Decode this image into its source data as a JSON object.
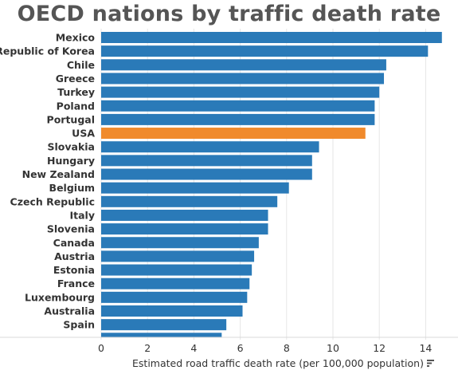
{
  "chart_data": {
    "type": "bar",
    "orientation": "horizontal",
    "title": "OECD nations by traffic death rate",
    "xlabel": "Estimated road traffic death rate (per 100,000 population)",
    "xlim": [
      0,
      15
    ],
    "xticks": [
      0,
      2,
      4,
      6,
      8,
      10,
      12,
      14
    ],
    "grid": true,
    "categories": [
      "Mexico",
      "Republic of Korea",
      "Chile",
      "Greece",
      "Turkey",
      "Poland",
      "Portugal",
      "USA",
      "Slovakia",
      "Hungary",
      "New Zealand",
      "Belgium",
      "Czech Republic",
      "Italy",
      "Slovenia",
      "Canada",
      "Austria",
      "Estonia",
      "France",
      "Luxembourg",
      "Australia",
      "Spain"
    ],
    "values": [
      14.7,
      14.1,
      12.3,
      12.2,
      12.0,
      11.8,
      11.8,
      11.4,
      9.4,
      9.1,
      9.1,
      8.1,
      7.6,
      7.2,
      7.2,
      6.8,
      6.6,
      6.5,
      6.4,
      6.3,
      6.1,
      5.4
    ],
    "truncated_bar_value": 5.2,
    "bar_color": "#2a7ab8",
    "highlight_category": "USA",
    "highlight_color": "#f08a2c",
    "sort_icon": "sort-descending-icon"
  }
}
